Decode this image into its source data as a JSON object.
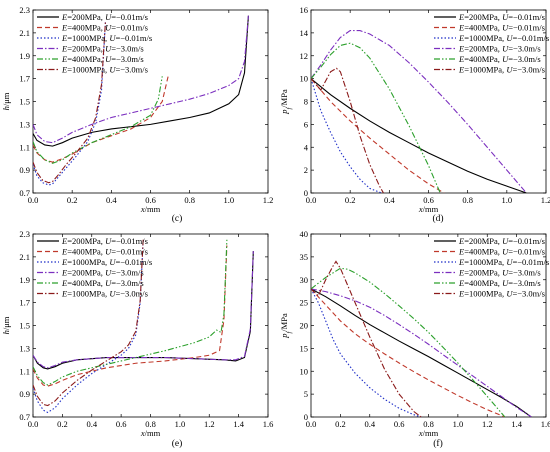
{
  "chart_data": [
    {
      "type": "line",
      "panel_label": "(c)",
      "xlabel": "x/mm",
      "ylabel": "h/μm",
      "xlim": [
        0,
        1.2
      ],
      "ylim": [
        0.7,
        2.3
      ],
      "xticks": [
        "0.0",
        "0.2",
        "0.4",
        "0.6",
        "0.8",
        "1.0",
        "1.2"
      ],
      "yticks": [
        "0.7",
        "0.9",
        "1.1",
        "1.3",
        "1.5",
        "1.7",
        "1.9",
        "2.1",
        "2.3"
      ],
      "legend_position": "top-left",
      "series": [
        {
          "name": "E=200MPa, U=−0.01m/s",
          "color": "#000000",
          "dash": "solid",
          "x": [
            0,
            0.02,
            0.06,
            0.1,
            0.15,
            0.2,
            0.3,
            0.4,
            0.5,
            0.6,
            0.7,
            0.8,
            0.9,
            1.0,
            1.05,
            1.08,
            1.1
          ],
          "y": [
            1.22,
            1.16,
            1.12,
            1.11,
            1.14,
            1.18,
            1.23,
            1.26,
            1.28,
            1.3,
            1.33,
            1.36,
            1.4,
            1.48,
            1.56,
            1.75,
            2.25
          ]
        },
        {
          "name": "E=400MPa, U=−0.01m/s",
          "color": "#c0392b",
          "dash": "dashed",
          "x": [
            0,
            0.02,
            0.06,
            0.1,
            0.15,
            0.2,
            0.3,
            0.4,
            0.5,
            0.6,
            0.66,
            0.69
          ],
          "y": [
            1.12,
            1.05,
            0.99,
            0.97,
            1.0,
            1.04,
            1.14,
            1.2,
            1.26,
            1.36,
            1.5,
            1.72
          ]
        },
        {
          "name": "E=1000MPa, U=−0.01m/s",
          "color": "#1f2fc8",
          "dash": "dotted",
          "x": [
            0,
            0.02,
            0.05,
            0.08,
            0.1,
            0.13,
            0.17,
            0.22,
            0.28,
            0.32,
            0.35,
            0.37
          ],
          "y": [
            0.95,
            0.85,
            0.79,
            0.77,
            0.78,
            0.84,
            0.92,
            1.02,
            1.15,
            1.32,
            1.6,
            2.2
          ]
        },
        {
          "name": "E=200MPa, U=−3.0m/s",
          "color": "#7b2fbf",
          "dash": "dashdot",
          "x": [
            0,
            0.02,
            0.06,
            0.1,
            0.15,
            0.2,
            0.3,
            0.4,
            0.5,
            0.6,
            0.7,
            0.8,
            0.9,
            1.0,
            1.05,
            1.08,
            1.1
          ],
          "y": [
            1.3,
            1.21,
            1.15,
            1.14,
            1.18,
            1.23,
            1.3,
            1.36,
            1.4,
            1.44,
            1.48,
            1.52,
            1.57,
            1.64,
            1.7,
            1.85,
            2.25
          ]
        },
        {
          "name": "E=400MPa, U=−3.0m/s",
          "color": "#2ca02c",
          "dash": "dashdotdot",
          "x": [
            0,
            0.02,
            0.06,
            0.1,
            0.15,
            0.2,
            0.3,
            0.4,
            0.5,
            0.6,
            0.64,
            0.66
          ],
          "y": [
            1.15,
            1.06,
            0.99,
            0.96,
            0.99,
            1.05,
            1.14,
            1.21,
            1.28,
            1.38,
            1.52,
            1.72
          ]
        },
        {
          "name": "E=1000MPa, U=−3.0m/s",
          "color": "#8b1a1a",
          "dash": "dashdot",
          "x": [
            0,
            0.02,
            0.05,
            0.08,
            0.1,
            0.13,
            0.17,
            0.22,
            0.28,
            0.32,
            0.35,
            0.37
          ],
          "y": [
            0.97,
            0.88,
            0.81,
            0.79,
            0.8,
            0.86,
            0.95,
            1.05,
            1.18,
            1.36,
            1.65,
            2.2
          ]
        }
      ]
    },
    {
      "type": "line",
      "panel_label": "(d)",
      "xlabel": "x/mm",
      "ylabel": "p_f/MPa",
      "xlim": [
        0,
        1.2
      ],
      "ylim": [
        0,
        16
      ],
      "xticks": [
        "0.0",
        "0.2",
        "0.4",
        "0.6",
        "0.8",
        "1.0",
        "1.2"
      ],
      "yticks": [
        "0",
        "2",
        "4",
        "6",
        "8",
        "10",
        "12",
        "14",
        "16"
      ],
      "legend_position": "top-right",
      "series": [
        {
          "name": "E=200MPa, U=−0.01m/s",
          "color": "#000000",
          "dash": "solid",
          "x": [
            0,
            0.1,
            0.2,
            0.3,
            0.4,
            0.5,
            0.6,
            0.7,
            0.8,
            0.9,
            1.0,
            1.1
          ],
          "y": [
            10.0,
            8.6,
            7.4,
            6.3,
            5.3,
            4.4,
            3.5,
            2.7,
            1.9,
            1.2,
            0.6,
            0
          ]
        },
        {
          "name": "E=400MPa, U=−0.01m/s",
          "color": "#c0392b",
          "dash": "dashed",
          "x": [
            0,
            0.1,
            0.2,
            0.3,
            0.4,
            0.5,
            0.6,
            0.68
          ],
          "y": [
            10.0,
            8.0,
            6.3,
            4.8,
            3.4,
            2.0,
            0.8,
            0
          ]
        },
        {
          "name": "E=1000MPa, U=−0.01m/s",
          "color": "#1f2fc8",
          "dash": "dotted",
          "x": [
            0,
            0.05,
            0.1,
            0.15,
            0.2,
            0.25,
            0.3,
            0.36
          ],
          "y": [
            10.0,
            7.2,
            5.3,
            3.6,
            2.3,
            1.2,
            0.4,
            0
          ]
        },
        {
          "name": "E=200MPa, U=−3.0m/s",
          "color": "#7b2fbf",
          "dash": "dashdot",
          "x": [
            0,
            0.05,
            0.1,
            0.15,
            0.2,
            0.25,
            0.3,
            0.4,
            0.5,
            0.6,
            0.7,
            0.8,
            0.9,
            1.0,
            1.1
          ],
          "y": [
            10.0,
            11.2,
            12.5,
            13.6,
            14.2,
            14.2,
            13.9,
            12.9,
            11.4,
            9.7,
            7.9,
            6.0,
            4.0,
            2.0,
            0
          ]
        },
        {
          "name": "E=400MPa, U=−3.0m/s",
          "color": "#2ca02c",
          "dash": "dashdotdot",
          "x": [
            0,
            0.05,
            0.1,
            0.15,
            0.2,
            0.25,
            0.3,
            0.4,
            0.5,
            0.6,
            0.66
          ],
          "y": [
            10.0,
            11.0,
            12.1,
            12.9,
            13.1,
            12.7,
            11.8,
            9.1,
            5.9,
            2.4,
            0
          ]
        },
        {
          "name": "E=1000MPa, U=−3.0m/s",
          "color": "#8b1a1a",
          "dash": "dashdot",
          "x": [
            0,
            0.05,
            0.1,
            0.13,
            0.15,
            0.2,
            0.25,
            0.3,
            0.35,
            0.37
          ],
          "y": [
            10.0,
            9.0,
            10.6,
            10.9,
            10.6,
            8.0,
            5.0,
            2.5,
            0.6,
            0
          ]
        }
      ]
    },
    {
      "type": "line",
      "panel_label": "(e)",
      "xlabel": "x/mm",
      "ylabel": "h/μm",
      "xlim": [
        0,
        1.6
      ],
      "ylim": [
        0.7,
        2.3
      ],
      "xticks": [
        "0.0",
        "0.2",
        "0.4",
        "0.6",
        "0.8",
        "1.0",
        "1.2",
        "1.4",
        "1.6"
      ],
      "yticks": [
        "0.7",
        "0.9",
        "1.1",
        "1.3",
        "1.5",
        "1.7",
        "1.9",
        "2.1",
        "2.3"
      ],
      "legend_position": "top-left",
      "series": [
        {
          "name": "E=200MPa, U=−0.01m/s",
          "color": "#000000",
          "dash": "solid",
          "x": [
            0,
            0.03,
            0.07,
            0.1,
            0.15,
            0.2,
            0.3,
            0.5,
            0.7,
            0.9,
            1.1,
            1.3,
            1.38,
            1.44,
            1.48,
            1.5
          ],
          "y": [
            1.24,
            1.17,
            1.13,
            1.12,
            1.14,
            1.17,
            1.2,
            1.22,
            1.22,
            1.22,
            1.21,
            1.2,
            1.19,
            1.22,
            1.45,
            2.15
          ]
        },
        {
          "name": "E=400MPa, U=−0.01m/s",
          "color": "#c0392b",
          "dash": "dashed",
          "x": [
            0,
            0.03,
            0.07,
            0.1,
            0.15,
            0.2,
            0.3,
            0.5,
            0.7,
            0.9,
            1.1,
            1.2,
            1.27,
            1.3,
            1.32
          ],
          "y": [
            1.12,
            1.04,
            0.98,
            0.97,
            0.99,
            1.02,
            1.07,
            1.13,
            1.17,
            1.19,
            1.22,
            1.24,
            1.28,
            1.55,
            2.2
          ]
        },
        {
          "name": "E=1000MPa, U=−0.01m/s",
          "color": "#1f2fc8",
          "dash": "dotted",
          "x": [
            0,
            0.03,
            0.07,
            0.1,
            0.15,
            0.2,
            0.3,
            0.4,
            0.5,
            0.6,
            0.65,
            0.7,
            0.73,
            0.75
          ],
          "y": [
            0.95,
            0.84,
            0.76,
            0.74,
            0.78,
            0.86,
            0.98,
            1.08,
            1.16,
            1.24,
            1.3,
            1.42,
            1.7,
            2.25
          ]
        },
        {
          "name": "E=200MPa, U=−3.0m/s",
          "color": "#7b2fbf",
          "dash": "dashdot",
          "x": [
            0,
            0.03,
            0.07,
            0.1,
            0.15,
            0.2,
            0.3,
            0.5,
            0.7,
            0.9,
            1.1,
            1.3,
            1.38,
            1.44,
            1.48,
            1.5
          ],
          "y": [
            1.24,
            1.18,
            1.14,
            1.13,
            1.15,
            1.18,
            1.2,
            1.22,
            1.22,
            1.22,
            1.21,
            1.2,
            1.2,
            1.23,
            1.47,
            2.15
          ]
        },
        {
          "name": "E=400MPa, U=−3.0m/s",
          "color": "#2ca02c",
          "dash": "dashdotdot",
          "x": [
            0,
            0.03,
            0.07,
            0.1,
            0.15,
            0.2,
            0.3,
            0.5,
            0.7,
            0.9,
            1.1,
            1.2,
            1.25,
            1.28,
            1.3,
            1.32
          ],
          "y": [
            1.14,
            1.06,
            1.0,
            0.98,
            1.01,
            1.05,
            1.1,
            1.16,
            1.22,
            1.28,
            1.35,
            1.4,
            1.46,
            1.44,
            1.6,
            2.25
          ]
        },
        {
          "name": "E=1000MPa, U=−3.0m/s",
          "color": "#8b1a1a",
          "dash": "dashdot",
          "x": [
            0,
            0.03,
            0.07,
            0.1,
            0.15,
            0.2,
            0.3,
            0.4,
            0.5,
            0.6,
            0.65,
            0.7,
            0.73,
            0.75
          ],
          "y": [
            0.98,
            0.88,
            0.81,
            0.8,
            0.84,
            0.91,
            1.02,
            1.11,
            1.19,
            1.27,
            1.33,
            1.45,
            1.72,
            2.25
          ]
        }
      ]
    },
    {
      "type": "line",
      "panel_label": "(f)",
      "xlabel": "x/mm",
      "ylabel": "p_f/MPa",
      "xlim": [
        0,
        1.6
      ],
      "ylim": [
        0,
        40
      ],
      "xticks": [
        "0.0",
        "0.2",
        "0.4",
        "0.6",
        "0.8",
        "1.0",
        "1.2",
        "1.4",
        "1.6"
      ],
      "yticks": [
        "0",
        "5",
        "10",
        "15",
        "20",
        "25",
        "30",
        "35",
        "40"
      ],
      "legend_position": "top-right",
      "series": [
        {
          "name": "E=200MPa, U=−0.01m/s",
          "color": "#000000",
          "dash": "solid",
          "x": [
            0,
            0.1,
            0.2,
            0.3,
            0.4,
            0.5,
            0.6,
            0.7,
            0.8,
            0.9,
            1.0,
            1.1,
            1.2,
            1.3,
            1.4,
            1.5
          ],
          "y": [
            28.0,
            26.3,
            24.3,
            22.2,
            20.2,
            18.4,
            16.6,
            14.9,
            13.2,
            11.4,
            9.6,
            7.8,
            6.0,
            4.2,
            2.3,
            0
          ]
        },
        {
          "name": "E=400MPa, U=−0.01m/s",
          "color": "#c0392b",
          "dash": "dashed",
          "x": [
            0,
            0.1,
            0.2,
            0.3,
            0.4,
            0.5,
            0.6,
            0.7,
            0.8,
            0.9,
            1.0,
            1.1,
            1.2,
            1.32
          ],
          "y": [
            28.0,
            24.5,
            21.0,
            18.2,
            15.9,
            13.8,
            11.8,
            9.9,
            8.1,
            6.4,
            4.7,
            3.1,
            1.6,
            0
          ]
        },
        {
          "name": "E=1000MPa, U=−0.01m/s",
          "color": "#1f2fc8",
          "dash": "dotted",
          "x": [
            0,
            0.05,
            0.1,
            0.15,
            0.2,
            0.3,
            0.4,
            0.5,
            0.6,
            0.7,
            0.75
          ],
          "y": [
            28.0,
            25.0,
            21.0,
            17.0,
            13.8,
            9.6,
            6.4,
            3.9,
            1.9,
            0.5,
            0
          ]
        },
        {
          "name": "E=200MPa, U=−3.0m/s",
          "color": "#7b2fbf",
          "dash": "dashdot",
          "x": [
            0,
            0.1,
            0.2,
            0.3,
            0.4,
            0.5,
            0.6,
            0.7,
            0.8,
            0.9,
            1.0,
            1.1,
            1.2,
            1.3,
            1.4,
            1.5
          ],
          "y": [
            28.0,
            27.4,
            26.5,
            25.4,
            24.0,
            22.2,
            20.2,
            18.1,
            15.9,
            13.6,
            11.3,
            9.0,
            6.7,
            4.4,
            2.1,
            0
          ]
        },
        {
          "name": "E=400MPa, U=−3.0m/s",
          "color": "#2ca02c",
          "dash": "dashdotdot",
          "x": [
            0,
            0.1,
            0.2,
            0.25,
            0.3,
            0.4,
            0.5,
            0.6,
            0.7,
            0.8,
            0.9,
            1.0,
            1.1,
            1.2,
            1.32
          ],
          "y": [
            28.0,
            30.5,
            32.5,
            32.3,
            31.5,
            29.5,
            27.0,
            24.3,
            21.5,
            18.5,
            15.2,
            11.8,
            8.2,
            4.5,
            0
          ]
        },
        {
          "name": "E=1000MPa, U=−3.0m/s",
          "color": "#8b1a1a",
          "dash": "dashdot",
          "x": [
            0,
            0.05,
            0.1,
            0.15,
            0.17,
            0.2,
            0.3,
            0.4,
            0.5,
            0.6,
            0.7,
            0.75
          ],
          "y": [
            28.0,
            26.5,
            30.0,
            33.0,
            34.0,
            32.5,
            25.0,
            17.5,
            10.5,
            5.0,
            1.2,
            0
          ]
        }
      ]
    }
  ]
}
